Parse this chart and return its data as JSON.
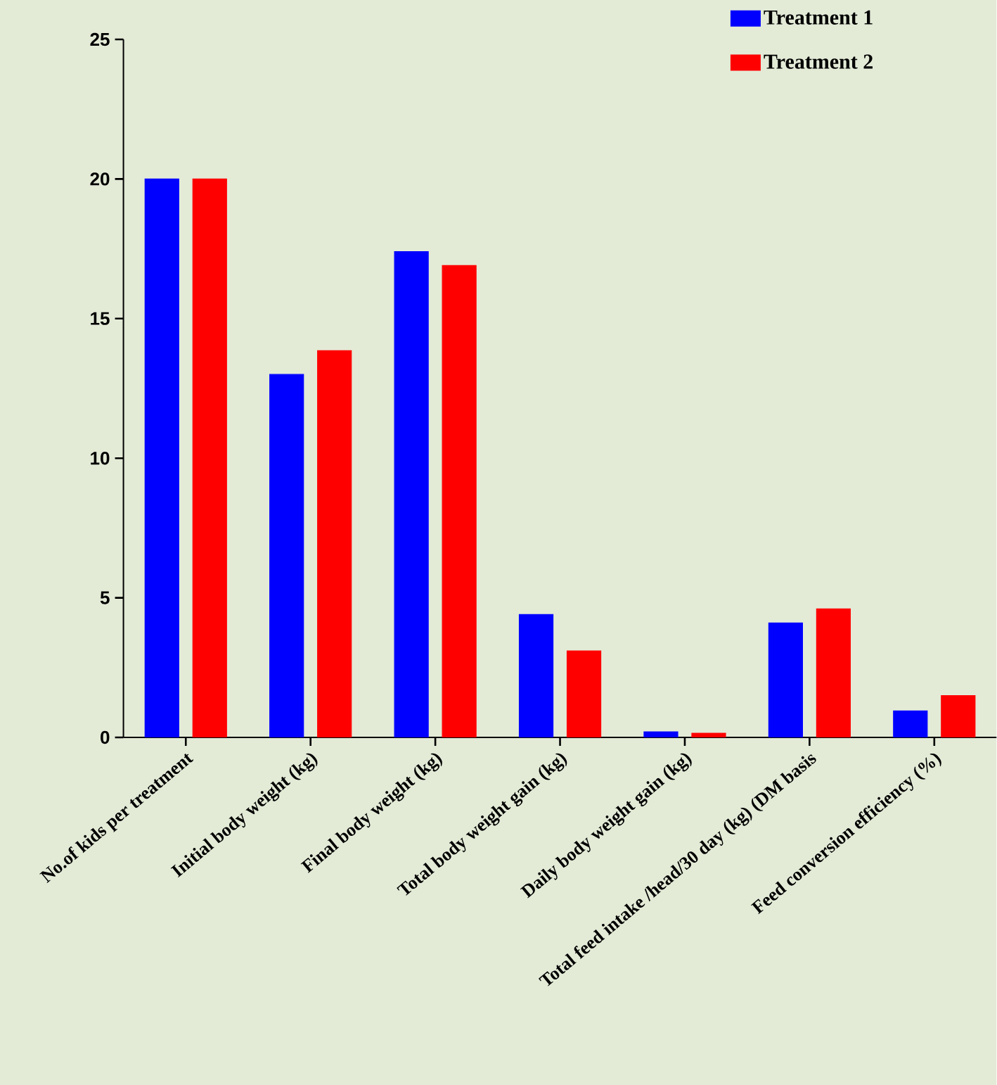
{
  "chart_data": {
    "type": "bar",
    "categories": [
      "No.of kids per treatment",
      "Initial body weight (kg)",
      "Final body weight (kg)",
      "Total body weight gain (kg)",
      "Daily body weight gain (kg)",
      "Total feed intake /head/30 day (kg) (DM basis",
      "Feed conversion efficiency (%)"
    ],
    "series": [
      {
        "name": "Treatment 1",
        "color": "#0000ff",
        "values": [
          20,
          13.0,
          17.4,
          4.4,
          0.2,
          4.1,
          0.95
        ]
      },
      {
        "name": "Treatment 2",
        "color": "#ff0000",
        "values": [
          20,
          13.85,
          16.9,
          3.1,
          0.15,
          4.6,
          1.5
        ]
      }
    ],
    "ylim": [
      0,
      25
    ],
    "yticks": [
      0,
      5,
      10,
      15,
      20,
      25
    ],
    "grid": false,
    "legend": "top right"
  }
}
